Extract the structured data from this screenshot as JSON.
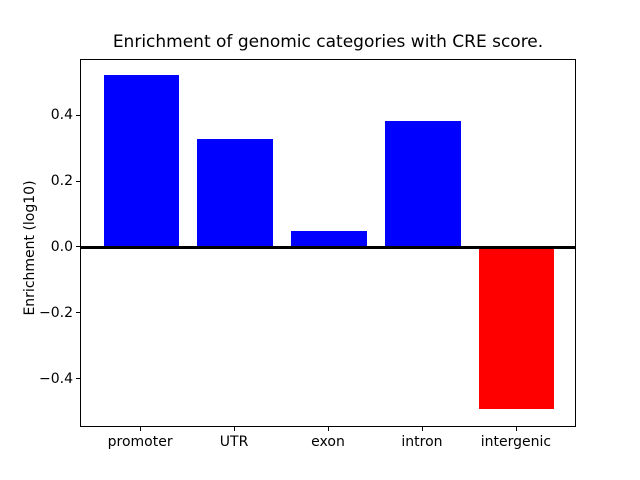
{
  "figure": {
    "background": "#ffffff",
    "spine_color": "#000000",
    "text_color": "#000000"
  },
  "chart_data": {
    "type": "bar",
    "title": "Enrichment of genomic categories with CRE score.",
    "xlabel": "",
    "ylabel": "Enrichment (log10)",
    "categories": [
      "promoter",
      "UTR",
      "exon",
      "intron",
      "intergenic"
    ],
    "values": [
      0.525,
      0.33,
      0.05,
      0.385,
      -0.49
    ],
    "bar_colors": [
      "#0000ff",
      "#0000ff",
      "#0000ff",
      "#0000ff",
      "#ff0000"
    ],
    "positive_color": "#0000ff",
    "negative_color": "#ff0000",
    "ylim": [
      -0.547,
      0.571
    ],
    "xlim_units": [
      -0.64,
      4.64
    ],
    "bar_width_units": 0.8,
    "yticks": [
      -0.4,
      -0.2,
      0.0,
      0.2,
      0.4
    ],
    "ytick_labels": [
      "−0.4",
      "−0.2",
      "0.0",
      "0.2",
      "0.4"
    ],
    "zero_line": true,
    "grid": false,
    "legend": "none"
  }
}
